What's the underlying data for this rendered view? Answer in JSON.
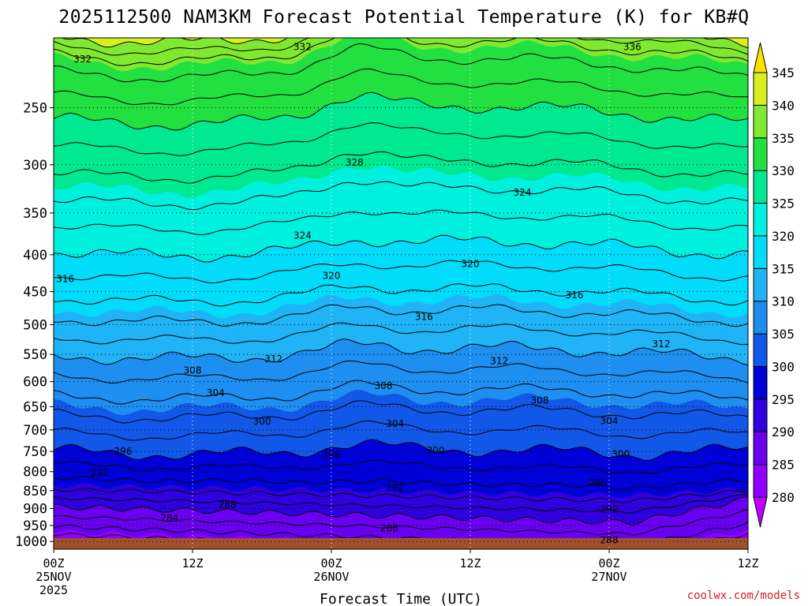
{
  "chart_data": {
    "type": "heatmap",
    "title": "2025112500 NAM3KM Forecast Potential Temperature (K) for KB#Q",
    "xlabel": "Forecast Time (UTC)",
    "ylabel": "",
    "x_ticks": [
      {
        "hour": 0,
        "lines": [
          "00Z",
          "25NOV",
          "2025"
        ]
      },
      {
        "hour": 12,
        "lines": [
          "12Z"
        ]
      },
      {
        "hour": 24,
        "lines": [
          "00Z",
          "26NOV"
        ]
      },
      {
        "hour": 36,
        "lines": [
          "12Z"
        ]
      },
      {
        "hour": 48,
        "lines": [
          "00Z",
          "27NOV"
        ]
      },
      {
        "hour": 60,
        "lines": [
          "12Z"
        ]
      }
    ],
    "xlim": [
      0,
      60
    ],
    "y_scale": "log-pressure",
    "y_ticks_hPa": [
      250,
      300,
      350,
      400,
      450,
      500,
      550,
      600,
      650,
      700,
      750,
      800,
      850,
      900,
      950,
      1000
    ],
    "ylim_hPa": [
      1025,
      200
    ],
    "grid": true,
    "colorbar": {
      "levels": [
        280,
        285,
        290,
        295,
        300,
        305,
        310,
        315,
        320,
        325,
        330,
        335,
        340,
        345
      ],
      "colors": [
        "#c000ff",
        "#8f00ff",
        "#6a00f0",
        "#2f00e0",
        "#0000d8",
        "#1258e8",
        "#1e8ff0",
        "#20b4f6",
        "#00dcfa",
        "#00f0e0",
        "#00e890",
        "#22e040",
        "#80e830",
        "#d8f020",
        "#ffe000"
      ]
    },
    "contour_labels": [
      {
        "text": "332",
        "hour": 2.5,
        "p": 214
      },
      {
        "text": "332",
        "hour": 21.5,
        "p": 206
      },
      {
        "text": "336",
        "hour": 50,
        "p": 206
      },
      {
        "text": "328",
        "hour": 26,
        "p": 298
      },
      {
        "text": "324",
        "hour": 40.5,
        "p": 328
      },
      {
        "text": "324",
        "hour": 21.5,
        "p": 376
      },
      {
        "text": "320",
        "hour": 24,
        "p": 428
      },
      {
        "text": "320",
        "hour": 36,
        "p": 412
      },
      {
        "text": "316",
        "hour": 1,
        "p": 432
      },
      {
        "text": "316",
        "hour": 45,
        "p": 455
      },
      {
        "text": "316",
        "hour": 32,
        "p": 488
      },
      {
        "text": "312",
        "hour": 52.5,
        "p": 532
      },
      {
        "text": "312",
        "hour": 19,
        "p": 558
      },
      {
        "text": "312",
        "hour": 38.5,
        "p": 562
      },
      {
        "text": "308",
        "hour": 12,
        "p": 579
      },
      {
        "text": "308",
        "hour": 28.5,
        "p": 608
      },
      {
        "text": "308",
        "hour": 42,
        "p": 637
      },
      {
        "text": "304",
        "hour": 14,
        "p": 622
      },
      {
        "text": "304",
        "hour": 48,
        "p": 680
      },
      {
        "text": "304",
        "hour": 29.5,
        "p": 686
      },
      {
        "text": "300",
        "hour": 18,
        "p": 681
      },
      {
        "text": "300",
        "hour": 33,
        "p": 748
      },
      {
        "text": "300",
        "hour": 49,
        "p": 756
      },
      {
        "text": "296",
        "hour": 6,
        "p": 750
      },
      {
        "text": "296",
        "hour": 24,
        "p": 758
      },
      {
        "text": "296",
        "hour": 47,
        "p": 829
      },
      {
        "text": "292",
        "hour": 4,
        "p": 803
      },
      {
        "text": "292",
        "hour": 29.5,
        "p": 842
      },
      {
        "text": "292",
        "hour": 48,
        "p": 903
      },
      {
        "text": "288",
        "hour": 15,
        "p": 890
      },
      {
        "text": "288",
        "hour": 29,
        "p": 959
      },
      {
        "text": "288",
        "hour": 48,
        "p": 996
      },
      {
        "text": "284",
        "hour": 10,
        "p": 928
      }
    ]
  },
  "credit": "coolwx.com/models"
}
